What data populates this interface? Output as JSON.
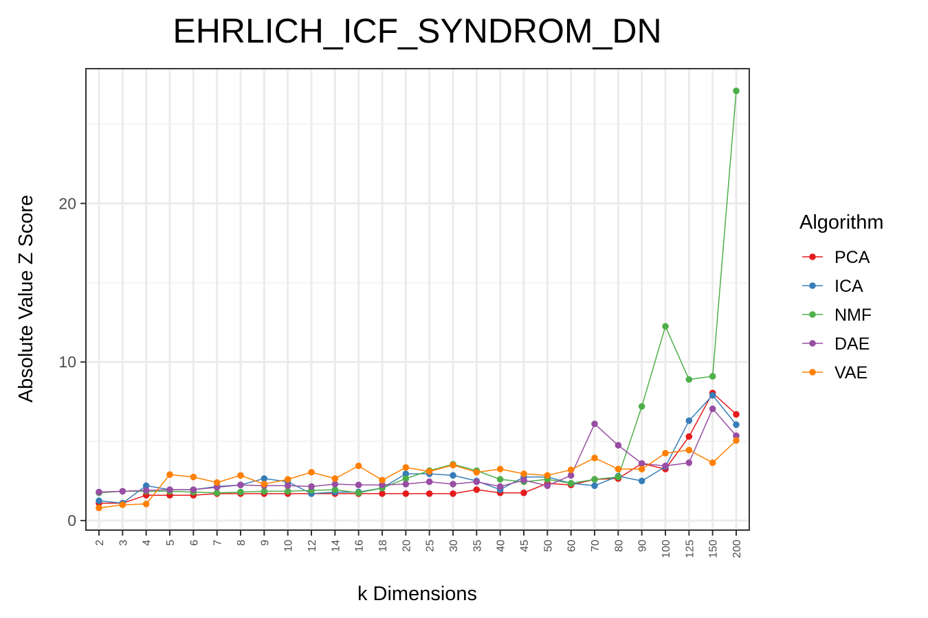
{
  "chart_data": {
    "type": "line",
    "title": "EHRLICH_ICF_SYNDROM_DN",
    "xlabel": "k Dimensions",
    "ylabel": "Absolute Value Z Score",
    "categories": [
      "2",
      "3",
      "4",
      "5",
      "6",
      "7",
      "8",
      "9",
      "10",
      "12",
      "14",
      "16",
      "18",
      "20",
      "25",
      "30",
      "35",
      "40",
      "45",
      "50",
      "60",
      "70",
      "80",
      "90",
      "100",
      "125",
      "150",
      "200"
    ],
    "yticks": [
      "0",
      "10",
      "20"
    ],
    "ytick_values": [
      0,
      10,
      20
    ],
    "ylim": [
      -0.6,
      28.5
    ],
    "grid": true,
    "legend": {
      "title": "Algorithm",
      "position": "right"
    },
    "series": [
      {
        "name": "PCA",
        "color": "#e41a1c",
        "values": [
          1.1,
          1.1,
          1.6,
          1.6,
          1.6,
          1.7,
          1.7,
          1.7,
          1.7,
          1.7,
          1.7,
          1.7,
          1.7,
          1.7,
          1.7,
          1.7,
          1.95,
          1.75,
          1.75,
          2.35,
          2.25,
          2.6,
          2.65,
          3.6,
          3.25,
          5.3,
          8.05,
          6.7
        ]
      },
      {
        "name": "ICA",
        "color": "#377eb8",
        "values": [
          1.25,
          1.1,
          2.2,
          1.95,
          1.95,
          2.15,
          2.25,
          2.65,
          2.45,
          1.7,
          1.8,
          1.8,
          2.05,
          2.95,
          2.95,
          2.85,
          2.5,
          1.95,
          2.75,
          2.75,
          2.35,
          2.2,
          2.8,
          2.5,
          3.4,
          6.3,
          7.9,
          6.05
        ]
      },
      {
        "name": "NMF",
        "color": "#4daf4a",
        "values": [
          1.75,
          1.85,
          1.85,
          1.85,
          1.8,
          1.75,
          1.8,
          1.85,
          1.85,
          1.9,
          1.95,
          1.75,
          2.05,
          2.65,
          3.15,
          3.55,
          3.15,
          2.6,
          2.45,
          2.6,
          2.35,
          2.6,
          2.75,
          7.2,
          12.25,
          8.9,
          9.1,
          27.1
        ]
      },
      {
        "name": "DAE",
        "color": "#984ea3",
        "values": [
          1.8,
          1.85,
          1.9,
          1.95,
          1.95,
          2.1,
          2.25,
          2.2,
          2.2,
          2.15,
          2.3,
          2.25,
          2.25,
          2.3,
          2.45,
          2.3,
          2.45,
          2.15,
          2.55,
          2.2,
          2.85,
          6.1,
          4.75,
          3.6,
          3.45,
          3.65,
          7.05,
          5.35
        ]
      },
      {
        "name": "VAE",
        "color": "#ff7f00",
        "values": [
          0.8,
          1.0,
          1.05,
          2.9,
          2.75,
          2.4,
          2.85,
          2.3,
          2.6,
          3.05,
          2.65,
          3.45,
          2.55,
          3.35,
          3.1,
          3.5,
          3.05,
          3.25,
          2.95,
          2.85,
          3.2,
          3.95,
          3.25,
          3.25,
          4.25,
          4.45,
          3.65,
          5.05
        ]
      }
    ]
  }
}
